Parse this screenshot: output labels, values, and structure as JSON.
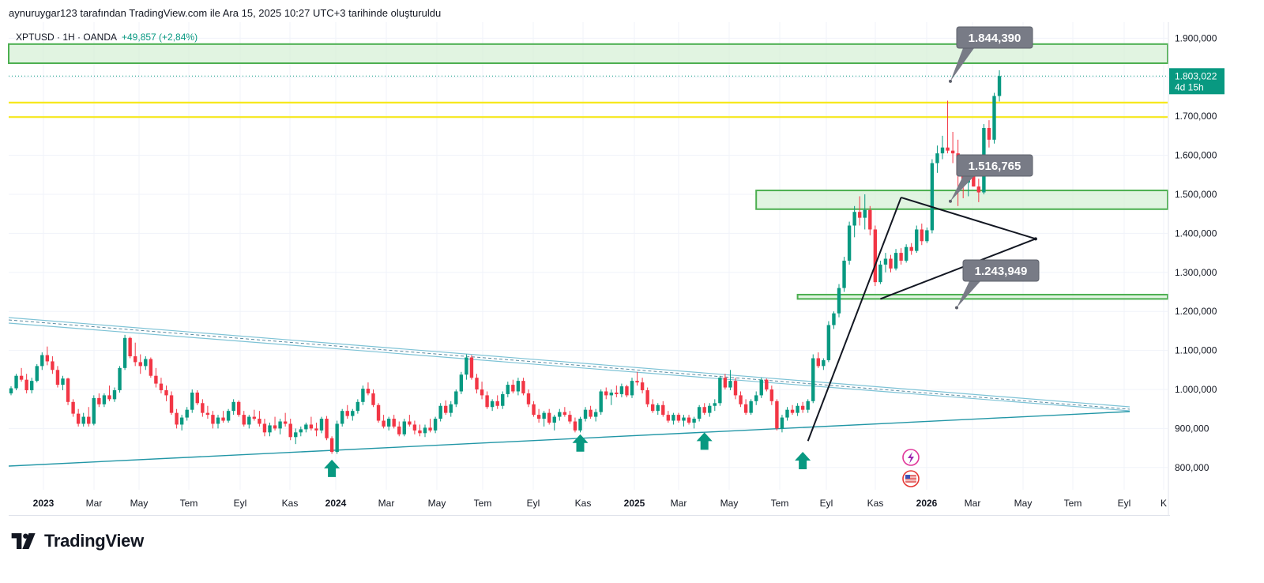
{
  "header": {
    "credit": "aynuruygar123 tarafından TradingView.com ile Ara 15, 2025 10:27 UTC+3 tarihinde oluşturuldu"
  },
  "legend": {
    "symbol": "XPTUSD · 1H · OANDA",
    "change": "+49,857 (+2,84%)"
  },
  "footer": {
    "brand": "TradingView"
  },
  "colors": {
    "up": "#089981",
    "down": "#f23645",
    "zone_fill": "#d7f0d7",
    "zone_stroke": "#4caf50",
    "yellow": "#f7e81c",
    "trend_blue": "#2196a6",
    "trend_light": "#7ec3d6",
    "label_bg": "#787b86",
    "price_label": "#089981"
  },
  "chart_data": {
    "type": "candlestick",
    "x_axis_labels": [
      "2023",
      "Mar",
      "May",
      "Tem",
      "Eyl",
      "Kas",
      "2024",
      "Mar",
      "May",
      "Tem",
      "Eyl",
      "Kas",
      "2025",
      "Mar",
      "May",
      "Tem",
      "Eyl",
      "Kas",
      "2026",
      "Mar",
      "May",
      "Tem",
      "Eyl",
      "K"
    ],
    "x_axis_bold": [
      "2023",
      "2024",
      "2025",
      "2026"
    ],
    "y_ticks": [
      1900000,
      1800000,
      1700000,
      1600000,
      1500000,
      1400000,
      1300000,
      1200000,
      1100000,
      1000000,
      900000,
      800000
    ],
    "y_tick_labels": [
      "1.900,000",
      "1.800,000",
      "1.700,000",
      "1.600,000",
      "1.500,000",
      "1.400,000",
      "1.300,000",
      "1.200,000",
      "1.100,000",
      "1.000,000",
      "900,000",
      "800,000"
    ],
    "ylim": [
      700000,
      2000000
    ],
    "current_price": {
      "value": 1803022,
      "label": "1.803,022",
      "countdown": "4d 15h"
    },
    "price_labels": [
      {
        "value": 1844390,
        "text": "1.844,390"
      },
      {
        "value": 1516765,
        "text": "1.516,765"
      },
      {
        "value": 1243949,
        "text": "1.243,949"
      }
    ],
    "zones": [
      {
        "from": 1836000,
        "to": 1885000,
        "start_week": 0
      },
      {
        "from": 1462000,
        "to": 1510000,
        "start_week": 144
      },
      {
        "from": 1232000,
        "to": 1243000,
        "start_week": 152
      }
    ],
    "yellow_lines": [
      1735000,
      1698000
    ],
    "triangle": [
      {
        "week": 154,
        "value": 868000
      },
      {
        "week": 172,
        "value": 1492000
      },
      {
        "week": 198,
        "value": 1386000
      },
      {
        "week": 168,
        "value": 1232000
      }
    ],
    "arrows": [
      {
        "week": 62,
        "value": 820000
      },
      {
        "week": 110,
        "value": 885000
      },
      {
        "week": 134,
        "value": 890000
      },
      {
        "week": 153,
        "value": 840000
      }
    ],
    "event_icons": [
      "lightning-icon",
      "us-flag-icon"
    ],
    "candles": [
      [
        990000,
        1008000,
        985000,
        1003000
      ],
      [
        1003000,
        1040000,
        998000,
        1035000
      ],
      [
        1035000,
        1055000,
        1020000,
        1025000
      ],
      [
        1025000,
        1040000,
        990000,
        998000
      ],
      [
        998000,
        1030000,
        990000,
        1022000
      ],
      [
        1022000,
        1065000,
        1018000,
        1060000
      ],
      [
        1060000,
        1095000,
        1050000,
        1088000
      ],
      [
        1088000,
        1110000,
        1062000,
        1072000
      ],
      [
        1072000,
        1085000,
        1040000,
        1050000
      ],
      [
        1050000,
        1060000,
        1005000,
        1012000
      ],
      [
        1012000,
        1035000,
        998000,
        1028000
      ],
      [
        1028000,
        1030000,
        960000,
        968000
      ],
      [
        968000,
        975000,
        930000,
        938000
      ],
      [
        938000,
        950000,
        905000,
        912000
      ],
      [
        912000,
        940000,
        905000,
        930000
      ],
      [
        930000,
        955000,
        905000,
        912000
      ],
      [
        912000,
        985000,
        908000,
        978000
      ],
      [
        978000,
        990000,
        955000,
        962000
      ],
      [
        962000,
        990000,
        955000,
        985000
      ],
      [
        985000,
        1010000,
        970000,
        975000
      ],
      [
        975000,
        1005000,
        968000,
        998000
      ],
      [
        998000,
        1060000,
        992000,
        1055000
      ],
      [
        1055000,
        1140000,
        1050000,
        1132000
      ],
      [
        1132000,
        1135000,
        1080000,
        1085000
      ],
      [
        1085000,
        1120000,
        1060000,
        1070000
      ],
      [
        1070000,
        1090000,
        1040000,
        1060000
      ],
      [
        1060000,
        1085000,
        1050000,
        1078000
      ],
      [
        1078000,
        1082000,
        1030000,
        1035000
      ],
      [
        1035000,
        1055000,
        1005000,
        1015000
      ],
      [
        1015000,
        1030000,
        990000,
        998000
      ],
      [
        998000,
        1010000,
        970000,
        985000
      ],
      [
        985000,
        995000,
        935000,
        940000
      ],
      [
        940000,
        950000,
        900000,
        910000
      ],
      [
        910000,
        935000,
        895000,
        928000
      ],
      [
        928000,
        955000,
        920000,
        948000
      ],
      [
        948000,
        1000000,
        940000,
        992000
      ],
      [
        992000,
        998000,
        960000,
        965000
      ],
      [
        965000,
        975000,
        930000,
        940000
      ],
      [
        940000,
        958000,
        925000,
        935000
      ],
      [
        935000,
        945000,
        900000,
        912000
      ],
      [
        912000,
        935000,
        900000,
        928000
      ],
      [
        928000,
        945000,
        915000,
        920000
      ],
      [
        920000,
        950000,
        915000,
        945000
      ],
      [
        945000,
        975000,
        935000,
        968000
      ],
      [
        968000,
        972000,
        930000,
        935000
      ],
      [
        935000,
        945000,
        905000,
        910000
      ],
      [
        910000,
        935000,
        900000,
        930000
      ],
      [
        930000,
        948000,
        920000,
        925000
      ],
      [
        925000,
        945000,
        905000,
        912000
      ],
      [
        912000,
        925000,
        880000,
        890000
      ],
      [
        890000,
        915000,
        880000,
        908000
      ],
      [
        908000,
        930000,
        895000,
        900000
      ],
      [
        900000,
        925000,
        885000,
        918000
      ],
      [
        918000,
        940000,
        905000,
        912000
      ],
      [
        912000,
        925000,
        870000,
        878000
      ],
      [
        878000,
        900000,
        860000,
        890000
      ],
      [
        890000,
        905000,
        880000,
        898000
      ],
      [
        898000,
        915000,
        890000,
        910000
      ],
      [
        910000,
        930000,
        895000,
        900000
      ],
      [
        900000,
        915000,
        880000,
        895000
      ],
      [
        895000,
        930000,
        888000,
        925000
      ],
      [
        925000,
        932000,
        870000,
        875000
      ],
      [
        875000,
        880000,
        835000,
        840000
      ],
      [
        840000,
        920000,
        835000,
        912000
      ],
      [
        912000,
        950000,
        905000,
        945000
      ],
      [
        945000,
        960000,
        925000,
        932000
      ],
      [
        932000,
        950000,
        920000,
        945000
      ],
      [
        945000,
        975000,
        938000,
        968000
      ],
      [
        968000,
        1010000,
        960000,
        1002000
      ],
      [
        1002000,
        1018000,
        985000,
        990000
      ],
      [
        990000,
        1000000,
        955000,
        960000
      ],
      [
        960000,
        965000,
        915000,
        920000
      ],
      [
        920000,
        935000,
        900000,
        905000
      ],
      [
        905000,
        930000,
        895000,
        925000
      ],
      [
        925000,
        935000,
        900000,
        905000
      ],
      [
        905000,
        918000,
        880000,
        885000
      ],
      [
        885000,
        925000,
        880000,
        918000
      ],
      [
        918000,
        935000,
        905000,
        910000
      ],
      [
        910000,
        920000,
        885000,
        895000
      ],
      [
        895000,
        910000,
        880000,
        888000
      ],
      [
        888000,
        910000,
        878000,
        902000
      ],
      [
        902000,
        925000,
        890000,
        895000
      ],
      [
        895000,
        930000,
        888000,
        925000
      ],
      [
        925000,
        965000,
        918000,
        958000
      ],
      [
        958000,
        972000,
        935000,
        940000
      ],
      [
        940000,
        970000,
        930000,
        962000
      ],
      [
        962000,
        1000000,
        955000,
        995000
      ],
      [
        995000,
        1045000,
        988000,
        1038000
      ],
      [
        1038000,
        1090000,
        1025000,
        1082000
      ],
      [
        1082000,
        1088000,
        1025000,
        1030000
      ],
      [
        1030000,
        1040000,
        990000,
        1000000
      ],
      [
        1000000,
        1020000,
        975000,
        985000
      ],
      [
        985000,
        995000,
        950000,
        955000
      ],
      [
        955000,
        975000,
        945000,
        970000
      ],
      [
        970000,
        985000,
        950000,
        958000
      ],
      [
        958000,
        995000,
        950000,
        988000
      ],
      [
        988000,
        1020000,
        980000,
        1012000
      ],
      [
        1012000,
        1025000,
        990000,
        995000
      ],
      [
        995000,
        1030000,
        985000,
        1022000
      ],
      [
        1022000,
        1030000,
        985000,
        990000
      ],
      [
        990000,
        1000000,
        955000,
        962000
      ],
      [
        962000,
        970000,
        930000,
        935000
      ],
      [
        935000,
        950000,
        915000,
        925000
      ],
      [
        925000,
        945000,
        905000,
        940000
      ],
      [
        940000,
        950000,
        910000,
        915000
      ],
      [
        915000,
        935000,
        895000,
        930000
      ],
      [
        930000,
        950000,
        920000,
        942000
      ],
      [
        942000,
        955000,
        930000,
        935000
      ],
      [
        935000,
        945000,
        912000,
        918000
      ],
      [
        918000,
        928000,
        890000,
        895000
      ],
      [
        895000,
        930000,
        890000,
        925000
      ],
      [
        925000,
        955000,
        918000,
        948000
      ],
      [
        948000,
        958000,
        925000,
        930000
      ],
      [
        930000,
        950000,
        918000,
        942000
      ],
      [
        942000,
        1000000,
        935000,
        995000
      ],
      [
        995000,
        1005000,
        975000,
        985000
      ],
      [
        985000,
        1000000,
        960000,
        992000
      ],
      [
        992000,
        1010000,
        980000,
        988000
      ],
      [
        988000,
        1015000,
        980000,
        1008000
      ],
      [
        1008000,
        1012000,
        980000,
        985000
      ],
      [
        985000,
        1030000,
        978000,
        1022000
      ],
      [
        1022000,
        1045000,
        1010000,
        1018000
      ],
      [
        1018000,
        1030000,
        990000,
        998000
      ],
      [
        998000,
        1005000,
        955000,
        962000
      ],
      [
        962000,
        975000,
        940000,
        945000
      ],
      [
        945000,
        965000,
        935000,
        960000
      ],
      [
        960000,
        970000,
        930000,
        935000
      ],
      [
        935000,
        945000,
        915000,
        920000
      ],
      [
        920000,
        940000,
        910000,
        935000
      ],
      [
        935000,
        940000,
        915000,
        920000
      ],
      [
        920000,
        935000,
        905000,
        928000
      ],
      [
        928000,
        935000,
        910000,
        915000
      ],
      [
        915000,
        930000,
        900000,
        925000
      ],
      [
        925000,
        960000,
        918000,
        955000
      ],
      [
        955000,
        965000,
        935000,
        940000
      ],
      [
        940000,
        965000,
        930000,
        958000
      ],
      [
        958000,
        975000,
        945000,
        965000
      ],
      [
        965000,
        1035000,
        958000,
        1030000
      ],
      [
        1030000,
        1040000,
        1000000,
        1005000
      ],
      [
        1005000,
        1050000,
        998000,
        1022000
      ],
      [
        1022000,
        1030000,
        975000,
        985000
      ],
      [
        985000,
        995000,
        955000,
        962000
      ],
      [
        962000,
        975000,
        935000,
        940000
      ],
      [
        940000,
        975000,
        935000,
        970000
      ],
      [
        970000,
        995000,
        960000,
        985000
      ],
      [
        985000,
        1030000,
        978000,
        1025000
      ],
      [
        1025000,
        1028000,
        995000,
        1000000
      ],
      [
        1000000,
        1010000,
        960000,
        970000
      ],
      [
        970000,
        975000,
        895000,
        900000
      ],
      [
        900000,
        935000,
        890000,
        928000
      ],
      [
        928000,
        955000,
        920000,
        948000
      ],
      [
        948000,
        960000,
        935000,
        940000
      ],
      [
        940000,
        965000,
        932000,
        958000
      ],
      [
        958000,
        968000,
        940000,
        948000
      ],
      [
        948000,
        975000,
        940000,
        970000
      ],
      [
        970000,
        1090000,
        965000,
        1080000
      ],
      [
        1080000,
        1095000,
        1055000,
        1060000
      ],
      [
        1060000,
        1080000,
        1050000,
        1075000
      ],
      [
        1075000,
        1175000,
        1070000,
        1165000
      ],
      [
        1165000,
        1200000,
        1155000,
        1195000
      ],
      [
        1195000,
        1270000,
        1185000,
        1260000
      ],
      [
        1260000,
        1340000,
        1250000,
        1330000
      ],
      [
        1330000,
        1430000,
        1320000,
        1420000
      ],
      [
        1420000,
        1470000,
        1390000,
        1455000
      ],
      [
        1455000,
        1495000,
        1420000,
        1440000
      ],
      [
        1440000,
        1500000,
        1410000,
        1460000
      ],
      [
        1460000,
        1470000,
        1395000,
        1410000
      ],
      [
        1410000,
        1420000,
        1265000,
        1275000
      ],
      [
        1275000,
        1330000,
        1270000,
        1320000
      ],
      [
        1320000,
        1350000,
        1300000,
        1335000
      ],
      [
        1335000,
        1345000,
        1300000,
        1310000
      ],
      [
        1310000,
        1360000,
        1305000,
        1350000
      ],
      [
        1350000,
        1362000,
        1320000,
        1330000
      ],
      [
        1330000,
        1372000,
        1325000,
        1365000
      ],
      [
        1365000,
        1375000,
        1345000,
        1355000
      ],
      [
        1355000,
        1420000,
        1350000,
        1410000
      ],
      [
        1410000,
        1425000,
        1370000,
        1380000
      ],
      [
        1380000,
        1415000,
        1375000,
        1408000
      ],
      [
        1408000,
        1590000,
        1400000,
        1580000
      ],
      [
        1580000,
        1625000,
        1555000,
        1605000
      ],
      [
        1605000,
        1650000,
        1590000,
        1620000
      ],
      [
        1620000,
        1740000,
        1605000,
        1612000
      ],
      [
        1612000,
        1660000,
        1580000,
        1605000
      ],
      [
        1605000,
        1640000,
        1470000,
        1550000
      ],
      [
        1550000,
        1580000,
        1490000,
        1530000
      ],
      [
        1530000,
        1570000,
        1495000,
        1550000
      ],
      [
        1550000,
        1600000,
        1520000,
        1520000
      ],
      [
        1520000,
        1540000,
        1480000,
        1505000
      ],
      [
        1505000,
        1680000,
        1500000,
        1670000
      ],
      [
        1670000,
        1690000,
        1620000,
        1640000
      ],
      [
        1640000,
        1760000,
        1630000,
        1752000
      ],
      [
        1752000,
        1818000,
        1738000,
        1803022
      ]
    ]
  }
}
